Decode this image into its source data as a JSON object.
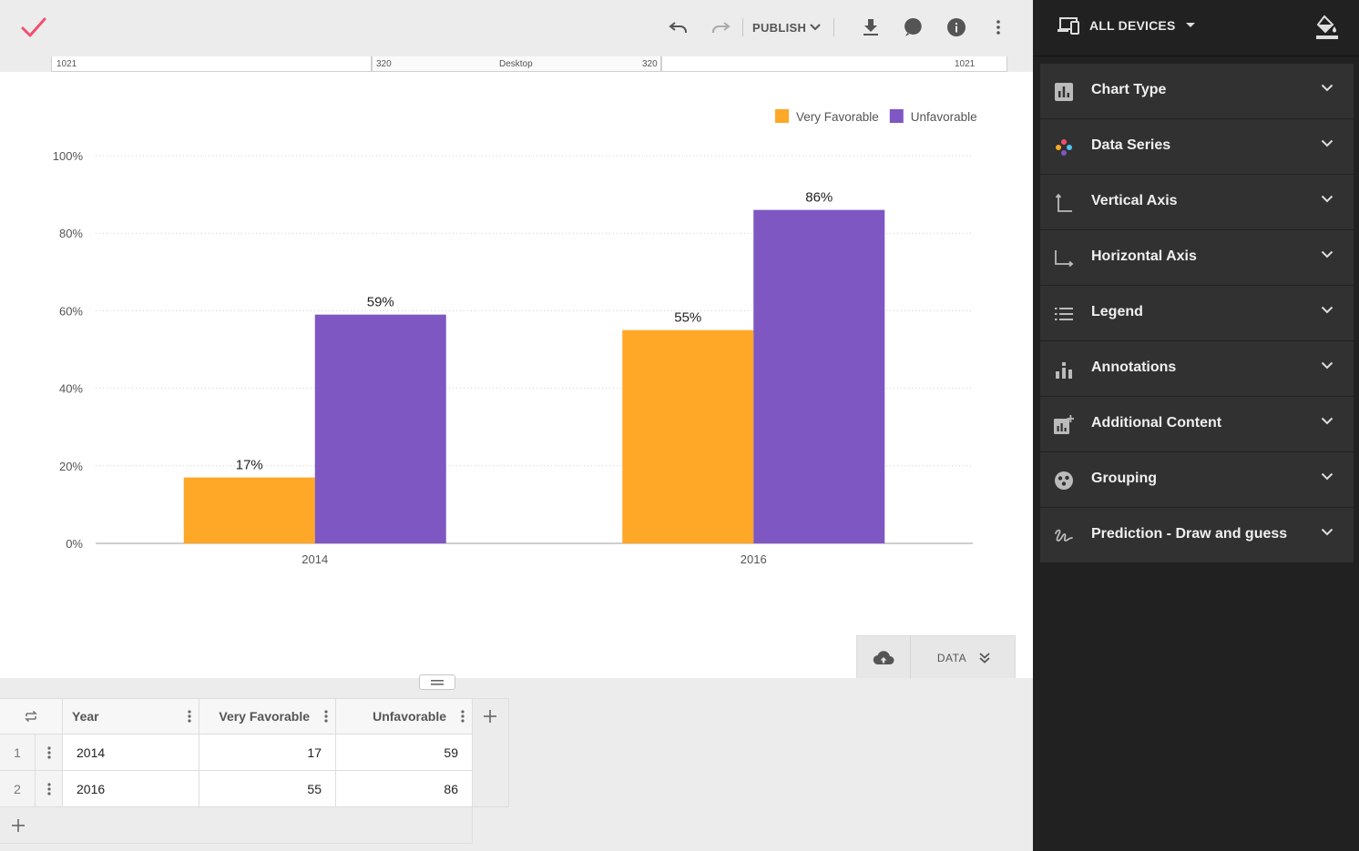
{
  "toolbar": {
    "publish_label": "PUBLISH"
  },
  "ruler": {
    "left_outer": "1021",
    "left_inner": "320",
    "center": "Desktop",
    "right_inner": "320",
    "right_outer": "1021"
  },
  "chart_data": {
    "type": "bar",
    "categories": [
      "2014",
      "2016"
    ],
    "series": [
      {
        "name": "Very Favorable",
        "values": [
          17,
          55
        ],
        "color": "#ffa726"
      },
      {
        "name": "Unfavorable",
        "values": [
          59,
          86
        ],
        "color": "#7e57c2"
      }
    ],
    "value_suffix": "%",
    "ylim": [
      0,
      100
    ],
    "yticks": [
      "0%",
      "20%",
      "40%",
      "60%",
      "80%",
      "100%"
    ],
    "grid": true,
    "legend_position": "top-right",
    "data_labels": true
  },
  "data_toggle": {
    "data_label": "DATA"
  },
  "grid": {
    "headers": [
      "Year",
      "Very Favorable",
      "Unfavorable"
    ],
    "rows": [
      {
        "num": "1",
        "year": "2014",
        "very_favorable": "17",
        "unfavorable": "59"
      },
      {
        "num": "2",
        "year": "2016",
        "very_favorable": "55",
        "unfavorable": "86"
      }
    ]
  },
  "sidebar": {
    "devices_label": "ALL DEVICES",
    "panels": [
      {
        "label": "Chart Type",
        "icon": "bar-chart-icon"
      },
      {
        "label": "Data Series",
        "icon": "palette-icon"
      },
      {
        "label": "Vertical Axis",
        "icon": "vertical-axis-icon"
      },
      {
        "label": "Horizontal Axis",
        "icon": "horizontal-axis-icon"
      },
      {
        "label": "Legend",
        "icon": "list-icon"
      },
      {
        "label": "Annotations",
        "icon": "annotations-icon"
      },
      {
        "label": "Additional Content",
        "icon": "add-chart-icon"
      },
      {
        "label": "Grouping",
        "icon": "grouping-icon"
      },
      {
        "label": "Prediction - Draw and guess",
        "icon": "gesture-icon"
      }
    ]
  },
  "colors": {
    "accent": "#f44e6e",
    "sidebar_bg": "#212121",
    "panel_bg": "#313131"
  }
}
